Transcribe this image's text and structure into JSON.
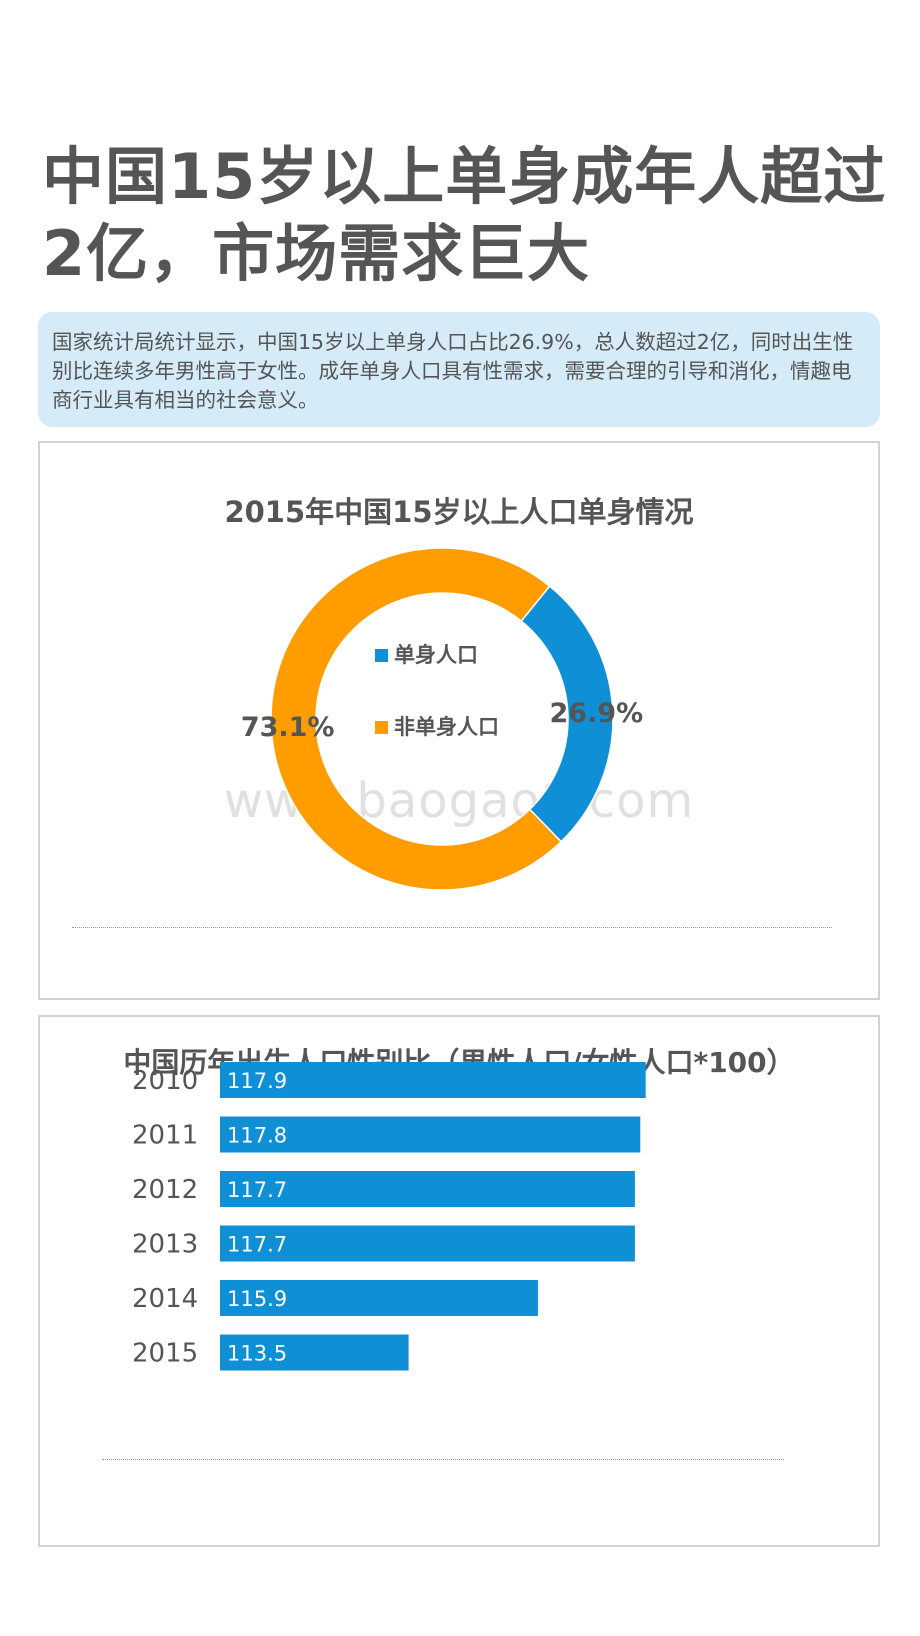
{
  "page_title": "中国15岁以上单身成年人超过2亿，市场需求巨大",
  "intro_text": "国家统计局统计显示，中国15岁以上单身人口占比26.9%，总人数超过2亿，同时出生性别比连续多年男性高于女性。成年单身人口具有性需求，需要合理的引导和消化，情趣电商行业具有相当的社会意义。",
  "watermark": "www.baogao8.com",
  "colors": {
    "blue": "#0e8fd6",
    "orange": "#ff9c00",
    "title_gray": "#555555"
  },
  "chart_data": [
    {
      "type": "pie",
      "subtype": "donut",
      "title": "2015年中国15岁以上人口单身情况",
      "categories": [
        "单身人口",
        "非单身人口"
      ],
      "values": [
        26.9,
        73.1
      ],
      "labels": [
        "26.9%",
        "73.1%"
      ],
      "colors": [
        "#0e8fd6",
        "#ff9c00"
      ],
      "legend": "center"
    },
    {
      "type": "bar",
      "orientation": "horizontal",
      "title": "中国历年出生人口性别比（男性人口/女性人口*100）",
      "categories": [
        "2010",
        "2011",
        "2012",
        "2013",
        "2014",
        "2015"
      ],
      "values": [
        117.9,
        117.8,
        117.7,
        117.7,
        115.9,
        113.5
      ],
      "labels": [
        "117.9",
        "117.8",
        "117.7",
        "117.7",
        "115.9",
        "113.5"
      ],
      "xlim": [
        110,
        118.5
      ],
      "color": "#0e8fd6",
      "xlabel": "",
      "ylabel": ""
    }
  ]
}
